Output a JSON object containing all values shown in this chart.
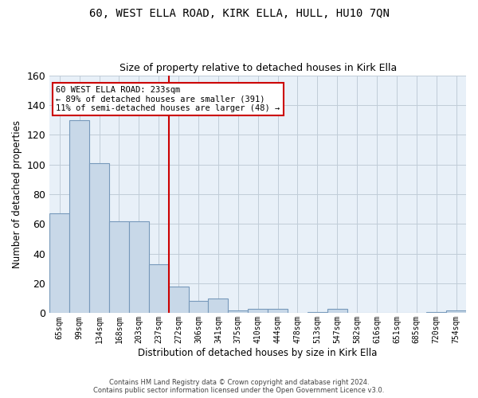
{
  "title": "60, WEST ELLA ROAD, KIRK ELLA, HULL, HU10 7QN",
  "subtitle": "Size of property relative to detached houses in Kirk Ella",
  "xlabel": "Distribution of detached houses by size in Kirk Ella",
  "ylabel": "Number of detached properties",
  "bar_color": "#c8d8e8",
  "bar_edge_color": "#7799bb",
  "categories": [
    "65sqm",
    "99sqm",
    "134sqm",
    "168sqm",
    "203sqm",
    "237sqm",
    "272sqm",
    "306sqm",
    "341sqm",
    "375sqm",
    "410sqm",
    "444sqm",
    "478sqm",
    "513sqm",
    "547sqm",
    "582sqm",
    "616sqm",
    "651sqm",
    "685sqm",
    "720sqm",
    "754sqm"
  ],
  "values": [
    67,
    130,
    101,
    62,
    62,
    33,
    18,
    8,
    10,
    2,
    3,
    3,
    0,
    1,
    3,
    0,
    0,
    0,
    0,
    1,
    2
  ],
  "ylim": [
    0,
    160
  ],
  "yticks": [
    0,
    20,
    40,
    60,
    80,
    100,
    120,
    140,
    160
  ],
  "vline_x": 5.5,
  "vline_color": "#cc0000",
  "annotation_text": "60 WEST ELLA ROAD: 233sqm\n← 89% of detached houses are smaller (391)\n11% of semi-detached houses are larger (48) →",
  "annotation_box_color": "#ffffff",
  "annotation_box_edge": "#cc0000",
  "footer": "Contains HM Land Registry data © Crown copyright and database right 2024.\nContains public sector information licensed under the Open Government Licence v3.0.",
  "background_color": "#e8f0f8",
  "fig_background": "#ffffff"
}
